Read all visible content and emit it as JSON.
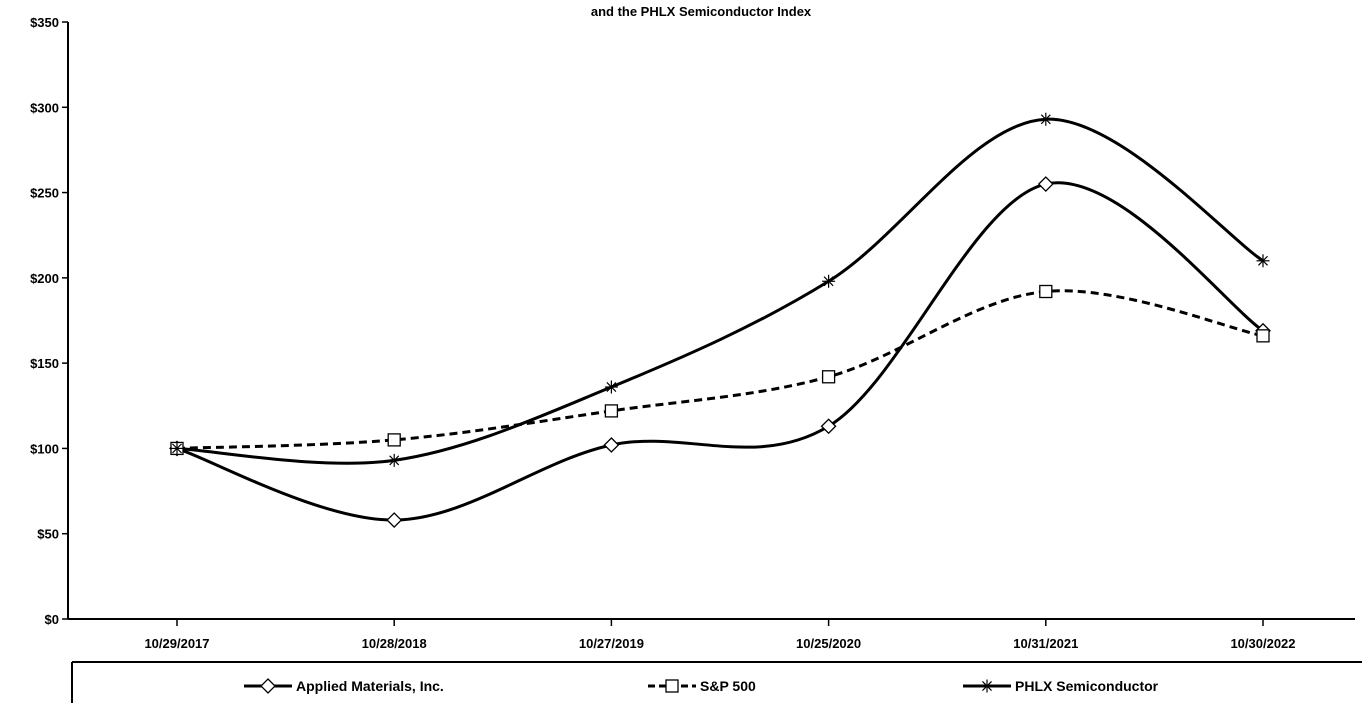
{
  "chart_data": {
    "type": "line",
    "title": "and the PHLX Semiconductor Index",
    "categories": [
      "10/29/2017",
      "10/28/2018",
      "10/27/2019",
      "10/25/2020",
      "10/31/2021",
      "10/30/2022"
    ],
    "y_tick_labels": [
      "$0",
      "$50",
      "$100",
      "$150",
      "$200",
      "$250",
      "$300",
      "$350"
    ],
    "ylim": [
      0,
      350
    ],
    "grid": false,
    "legend_position": "bottom",
    "series": [
      {
        "name": "Applied Materials, Inc.",
        "values": [
          100,
          58,
          102,
          113,
          255,
          169
        ],
        "marker": "diamond",
        "line_style": "solid",
        "color": "#000000"
      },
      {
        "name": "S&P 500",
        "values": [
          100,
          105,
          122,
          142,
          192,
          166
        ],
        "marker": "square",
        "line_style": "dashed",
        "color": "#000000"
      },
      {
        "name": "PHLX Semiconductor",
        "values": [
          100,
          93,
          136,
          198,
          293,
          210
        ],
        "marker": "asterisk",
        "line_style": "solid",
        "color": "#000000"
      }
    ]
  }
}
